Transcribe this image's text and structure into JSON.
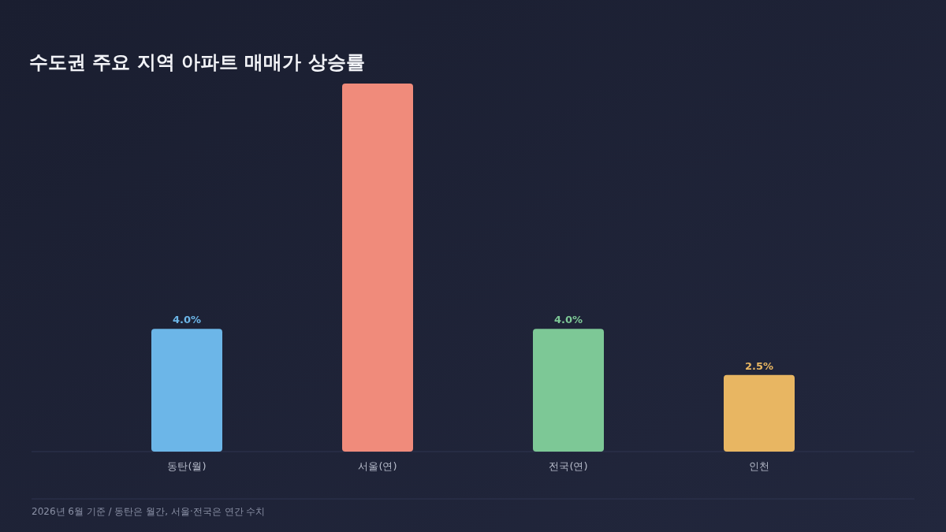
{
  "chart_data": {
    "type": "bar",
    "title": "수도권 주요 지역 아파트 매매가 상승률",
    "categories": [
      "동탄(월)",
      "서울(연)",
      "전국(연)",
      "인천"
    ],
    "values": [
      4.0,
      12.0,
      4.0,
      2.5
    ],
    "colors": [
      "#6cb6e8",
      "#f08b7b",
      "#7dc896",
      "#e8b662"
    ],
    "value_labels": [
      "4.0%",
      null,
      "4.0%",
      "2.5%"
    ],
    "annotations": [
      "2026년 6월 기준 / 동탄은 월간, 서울·전국은 연간 수치"
    ],
    "grid": false
  }
}
